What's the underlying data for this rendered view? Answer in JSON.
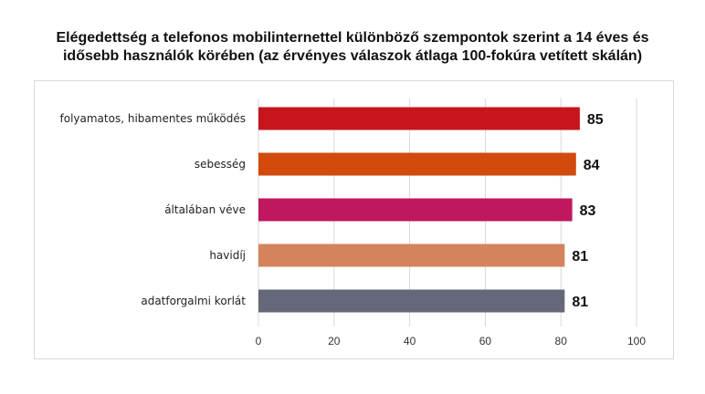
{
  "chart_data": {
    "type": "bar",
    "orientation": "horizontal",
    "title_lines": [
      "Elégedettség a telefonos mobilinternettel különböző szempontok szerint a 14 éves és",
      "idősebb használók körében (az érvényes válaszok átlaga 100-fokúra vetített skálán)"
    ],
    "categories": [
      "folyamatos, hibamentes működés",
      "sebesség",
      "általában véve",
      "havidíj",
      "adatforgalmi korlát"
    ],
    "values": [
      85,
      84,
      83,
      81,
      81
    ],
    "value_labels": [
      "85",
      "84",
      "83",
      "81",
      "81"
    ],
    "colors": [
      "#c8141c",
      "#d24a0c",
      "#c0175f",
      "#d4835d",
      "#646878"
    ],
    "xlim": [
      0,
      100
    ],
    "xticks": [
      0,
      20,
      40,
      60,
      80,
      100
    ],
    "xtick_labels": [
      "0",
      "20",
      "40",
      "60",
      "80",
      "100"
    ],
    "grid": true,
    "xlabel": "",
    "ylabel": ""
  }
}
